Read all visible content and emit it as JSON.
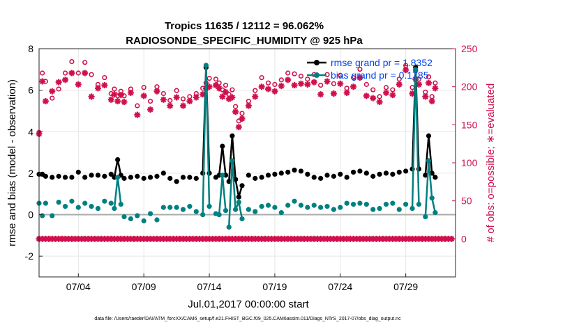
{
  "chart_data": {
    "type": "line",
    "title": "Tropics 11635 / 12112 = 96.062%",
    "subtitle": "RADIOSONDE_SPECIFIC_HUMIDITY @ 925 hPa",
    "xlabel": "Jul.01,2017 00:00:00 start",
    "ylabel": "rmse and bias (model - observation)",
    "y2label": "# of obs: o=possible; ∗=evaluated",
    "footer": "data file: /Users/raeder/DAI/ATM_forcXX/CAM6_setup/f.e21.FHIST_BGC.f09_025.CAM6assim.011/Diags_NTrS_2017-07/obs_diag_output.nc",
    "xlim": [
      1,
      32.8
    ],
    "ylim": [
      -3,
      8
    ],
    "y2lim": [
      -50,
      250
    ],
    "x_ticks": [
      4,
      9,
      14,
      19,
      24,
      29
    ],
    "x_tick_labels": [
      "07/04",
      "07/09",
      "07/14",
      "07/19",
      "07/24",
      "07/29"
    ],
    "y_ticks": [
      -2,
      0,
      2,
      4,
      6,
      8
    ],
    "y2_ticks": [
      0,
      50,
      100,
      150,
      200,
      250
    ],
    "grid": true,
    "colors": {
      "rmse": "#000000",
      "bias": "#008080",
      "obs": "#d0104c",
      "legend_text": "#0044ee",
      "zero_line": "#aaaaaa"
    },
    "series": [
      {
        "name": "rmse grand pr = 1.8352",
        "color": "#000000",
        "segments": [
          {
            "x": [
              6.75,
              7.0,
              7.25
            ],
            "y": [
              1.8,
              2.65,
              1.9
            ]
          },
          {
            "x": [
              13.5,
              13.75,
              14.0
            ],
            "y": [
              2.0,
              7.1,
              2.0
            ]
          },
          {
            "x": [
              14.75,
              15.0,
              15.25
            ],
            "y": [
              1.9,
              3.3,
              1.9
            ]
          },
          {
            "x": [
              15.5,
              15.75,
              16.0,
              16.25,
              16.5
            ],
            "y": [
              1.6,
              3.8,
              1.7,
              0.85,
              1.4
            ]
          },
          {
            "x": [
              29.5,
              29.75,
              30.0
            ],
            "y": [
              2.2,
              7.1,
              2.2
            ]
          },
          {
            "x": [
              30.5,
              30.75,
              31.0,
              31.25
            ],
            "y": [
              1.9,
              3.8,
              2.0,
              1.8
            ]
          }
        ],
        "points": {
          "x": [
            1.0,
            1.25,
            1.5,
            2.0,
            2.5,
            3.0,
            3.5,
            4.0,
            4.5,
            5.0,
            5.5,
            6.0,
            6.5,
            6.75,
            7.0,
            7.25,
            7.5,
            8.0,
            8.5,
            9.0,
            9.5,
            10.0,
            10.5,
            11.0,
            11.5,
            12.0,
            12.5,
            13.0,
            13.5,
            13.75,
            14.0,
            14.5,
            14.75,
            15.0,
            15.25,
            15.5,
            15.75,
            16.0,
            16.25,
            16.5,
            17.0,
            17.5,
            18.0,
            18.5,
            19.0,
            19.5,
            20.0,
            20.5,
            21.0,
            21.5,
            22.0,
            22.5,
            23.0,
            23.5,
            24.0,
            24.5,
            25.0,
            25.5,
            26.0,
            26.5,
            27.0,
            27.5,
            28.0,
            28.5,
            29.0,
            29.5,
            29.75,
            30.0,
            30.5,
            30.75,
            31.0,
            31.25
          ],
          "y": [
            1.95,
            1.95,
            1.85,
            1.8,
            1.85,
            1.8,
            1.8,
            2.05,
            1.8,
            1.9,
            1.9,
            1.85,
            1.95,
            1.8,
            2.65,
            1.9,
            1.75,
            1.8,
            1.85,
            1.75,
            1.8,
            1.85,
            2.0,
            1.75,
            1.6,
            1.8,
            1.8,
            1.75,
            2.0,
            7.1,
            2.0,
            1.8,
            1.9,
            3.3,
            1.9,
            1.6,
            3.8,
            1.7,
            0.85,
            1.4,
            1.9,
            1.75,
            1.8,
            1.9,
            1.95,
            2.0,
            2.05,
            2.15,
            2.1,
            1.95,
            1.8,
            1.75,
            1.9,
            1.85,
            1.95,
            1.8,
            2.05,
            2.1,
            2.0,
            1.85,
            1.95,
            2.0,
            1.95,
            2.05,
            2.1,
            2.2,
            7.1,
            2.2,
            1.9,
            3.8,
            2.0,
            1.8
          ]
        }
      },
      {
        "name": "bias grand pr = 0.1785",
        "color": "#008080",
        "segments": [
          {
            "x": [
              6.75,
              7.0,
              7.25
            ],
            "y": [
              0.3,
              1.8,
              0.5
            ]
          },
          {
            "x": [
              13.5,
              13.75,
              14.0
            ],
            "y": [
              0.0,
              7.2,
              0.4
            ]
          },
          {
            "x": [
              14.75,
              15.0,
              15.25
            ],
            "y": [
              0.0,
              1.9,
              0.2
            ]
          },
          {
            "x": [
              15.5,
              15.75,
              16.0,
              16.25,
              16.5
            ],
            "y": [
              -0.6,
              2.6,
              0.25,
              0.6,
              -0.2
            ]
          },
          {
            "x": [
              29.5,
              29.75,
              30.0
            ],
            "y": [
              0.3,
              7.0,
              0.5
            ]
          },
          {
            "x": [
              30.5,
              30.75,
              31.0,
              31.25
            ],
            "y": [
              -0.1,
              2.6,
              0.8,
              0.1
            ]
          }
        ],
        "points": {
          "x": [
            1.0,
            1.25,
            1.5,
            2.0,
            2.5,
            3.0,
            3.5,
            4.0,
            4.5,
            5.0,
            5.5,
            6.0,
            6.5,
            6.75,
            7.0,
            7.25,
            7.5,
            8.0,
            8.5,
            9.0,
            9.5,
            10.0,
            10.5,
            11.0,
            11.5,
            12.0,
            12.5,
            13.0,
            13.5,
            13.75,
            14.0,
            14.5,
            14.75,
            15.0,
            15.25,
            15.5,
            15.75,
            16.0,
            16.25,
            16.5,
            17.0,
            17.5,
            18.0,
            18.5,
            19.0,
            19.5,
            20.0,
            20.5,
            21.0,
            21.5,
            22.0,
            22.5,
            23.0,
            23.5,
            24.0,
            24.5,
            25.0,
            25.5,
            26.0,
            26.5,
            27.0,
            27.5,
            28.0,
            28.5,
            29.0,
            29.5,
            29.75,
            30.0,
            30.5,
            30.75,
            31.0,
            31.25
          ],
          "y": [
            0.55,
            -0.05,
            0.55,
            -0.05,
            0.6,
            0.4,
            0.65,
            0.35,
            0.55,
            0.4,
            0.3,
            0.65,
            0.55,
            0.3,
            1.8,
            0.5,
            -0.1,
            -0.2,
            -0.05,
            -0.3,
            0.05,
            -0.25,
            0.35,
            0.35,
            0.35,
            0.25,
            0.4,
            0.15,
            0.0,
            7.2,
            0.4,
            0.05,
            0.0,
            1.9,
            0.2,
            -0.6,
            2.6,
            0.25,
            0.6,
            -0.2,
            0.25,
            0.15,
            0.4,
            0.45,
            0.35,
            0.1,
            0.45,
            0.65,
            0.45,
            0.35,
            0.45,
            0.35,
            0.4,
            0.25,
            0.35,
            0.55,
            0.5,
            0.55,
            0.5,
            0.25,
            0.3,
            0.5,
            0.55,
            0.25,
            0.5,
            0.3,
            7.0,
            0.5,
            -0.1,
            2.6,
            0.8,
            0.1
          ]
        }
      }
    ],
    "obs_possible": {
      "label": "possible",
      "x": [
        1.0,
        1.25,
        1.5,
        2.0,
        2.5,
        3.0,
        3.5,
        4.0,
        4.5,
        5.0,
        5.5,
        6.0,
        6.5,
        6.75,
        7.0,
        7.25,
        7.5,
        8.0,
        8.5,
        9.0,
        9.5,
        10.0,
        10.5,
        11.0,
        11.5,
        12.0,
        12.5,
        13.0,
        13.5,
        13.75,
        14.0,
        14.5,
        14.75,
        15.0,
        15.25,
        15.5,
        15.75,
        16.0,
        16.25,
        16.5,
        17.0,
        17.5,
        18.0,
        18.5,
        19.0,
        19.5,
        20.0,
        20.5,
        21.0,
        21.5,
        22.0,
        22.5,
        23.0,
        23.5,
        24.0,
        24.5,
        25.0,
        25.5,
        26.0,
        26.5,
        27.0,
        27.5,
        28.0,
        28.5,
        29.0,
        29.5,
        29.75,
        30.0,
        30.5,
        30.75,
        31.0,
        31.25
      ],
      "y": [
        140,
        218,
        207,
        185,
        197,
        218,
        233,
        218,
        232,
        216,
        203,
        212,
        191,
        197,
        188,
        194,
        188,
        197,
        175,
        199,
        181,
        200,
        191,
        182,
        195,
        184,
        187,
        191,
        198,
        205,
        211,
        210,
        205,
        196,
        202,
        190,
        196,
        174,
        155,
        165,
        181,
        195,
        212,
        205,
        203,
        209,
        218,
        217,
        214,
        210,
        216,
        202,
        216,
        204,
        215,
        198,
        212,
        223,
        203,
        196,
        187,
        199,
        196,
        210,
        228,
        199,
        221,
        210,
        193,
        213,
        187,
        205
      ]
    },
    "obs_evaluated": {
      "label": "evaluated",
      "x": [
        1.0,
        1.25,
        1.5,
        2.0,
        2.5,
        3.0,
        3.5,
        4.0,
        4.5,
        5.0,
        5.5,
        6.0,
        6.5,
        6.75,
        7.0,
        7.25,
        7.5,
        8.0,
        8.5,
        9.0,
        9.5,
        10.0,
        10.5,
        11.0,
        11.5,
        12.0,
        12.5,
        13.0,
        13.5,
        13.75,
        14.0,
        14.5,
        14.75,
        15.0,
        15.25,
        15.5,
        15.75,
        16.0,
        16.25,
        16.5,
        17.0,
        17.5,
        18.0,
        18.5,
        19.0,
        19.5,
        20.0,
        20.5,
        21.0,
        21.5,
        22.0,
        22.5,
        23.0,
        23.5,
        24.0,
        24.5,
        25.0,
        25.5,
        26.0,
        26.5,
        27.0,
        27.5,
        28.0,
        28.5,
        29.0,
        29.5,
        29.75,
        30.0,
        30.5,
        30.75,
        31.0,
        31.25
      ],
      "y": [
        138,
        207,
        181,
        194,
        206,
        209,
        218,
        203,
        218,
        187,
        198,
        202,
        183,
        190,
        181,
        189,
        180,
        192,
        163,
        188,
        170,
        194,
        183,
        175,
        186,
        175,
        181,
        186,
        190,
        198,
        200,
        202,
        198,
        187,
        193,
        184,
        186,
        167,
        147,
        158,
        175,
        187,
        200,
        197,
        194,
        201,
        209,
        202,
        204,
        203,
        206,
        190,
        207,
        191,
        204,
        192,
        200,
        212,
        188,
        185,
        180,
        192,
        189,
        203,
        222,
        191,
        210,
        203,
        187,
        205,
        181,
        198
      ]
    },
    "obs_zero": {
      "x": [
        1.0,
        1.25,
        1.5,
        1.75,
        2.0,
        2.25,
        2.5,
        2.75,
        3.0,
        3.25,
        3.5,
        3.75,
        4.0,
        4.25,
        4.5,
        4.75,
        5.0,
        5.25,
        5.5,
        5.75,
        6.0,
        6.25,
        6.5,
        6.75,
        7.0,
        7.25,
        7.5,
        7.75,
        8.0,
        8.25,
        8.5,
        8.75,
        9.0,
        9.25,
        9.5,
        9.75,
        10.0,
        10.25,
        10.5,
        10.75,
        11.0,
        11.25,
        11.5,
        11.75,
        12.0,
        12.25,
        12.5,
        12.75,
        13.0,
        13.25,
        13.5,
        13.75,
        14.0,
        14.25,
        14.5,
        14.75,
        15.0,
        15.25,
        15.5,
        15.75,
        16.0,
        16.25,
        16.5,
        16.75,
        17.0,
        17.25,
        17.5,
        17.75,
        18.0,
        18.25,
        18.5,
        18.75,
        19.0,
        19.25,
        19.5,
        19.75,
        20.0,
        20.25,
        20.5,
        20.75,
        21.0,
        21.25,
        21.5,
        21.75,
        22.0,
        22.25,
        22.5,
        22.75,
        23.0,
        23.25,
        23.5,
        23.75,
        24.0,
        24.25,
        24.5,
        24.75,
        25.0,
        25.25,
        25.5,
        25.75,
        26.0,
        26.25,
        26.5,
        26.75,
        27.0,
        27.25,
        27.5,
        27.75,
        28.0,
        28.25,
        28.5,
        28.75,
        29.0,
        29.25,
        29.5,
        29.75,
        30.0,
        30.25,
        30.5,
        30.75,
        31.0,
        31.25,
        31.5,
        31.75,
        32.0,
        32.25,
        32.5
      ],
      "y": [
        0,
        0,
        0,
        0,
        0,
        0,
        0,
        0,
        0,
        0,
        0,
        0,
        0,
        0,
        0,
        0,
        0,
        0,
        0,
        0,
        0,
        0,
        0,
        0,
        0,
        0,
        0,
        0,
        0,
        0,
        0,
        0,
        0,
        0,
        0,
        0,
        0,
        0,
        0,
        0,
        0,
        0,
        0,
        0,
        0,
        0,
        0,
        0,
        0,
        0,
        0,
        0,
        0,
        0,
        0,
        0,
        0,
        0,
        0,
        0,
        0,
        0,
        0,
        0,
        0,
        0,
        0,
        0,
        0,
        0,
        0,
        0,
        0,
        0,
        0,
        0,
        0,
        0,
        0,
        0,
        0,
        0,
        0,
        0,
        0,
        0,
        0,
        0,
        0,
        0,
        0,
        0,
        0,
        0,
        0,
        0,
        0,
        0,
        0,
        0,
        0,
        0,
        0,
        0,
        0,
        0,
        0,
        0,
        0,
        0,
        0,
        0,
        0,
        0,
        0,
        0,
        0,
        0,
        0,
        0,
        0,
        0,
        0,
        0,
        0,
        0,
        0
      ]
    }
  }
}
